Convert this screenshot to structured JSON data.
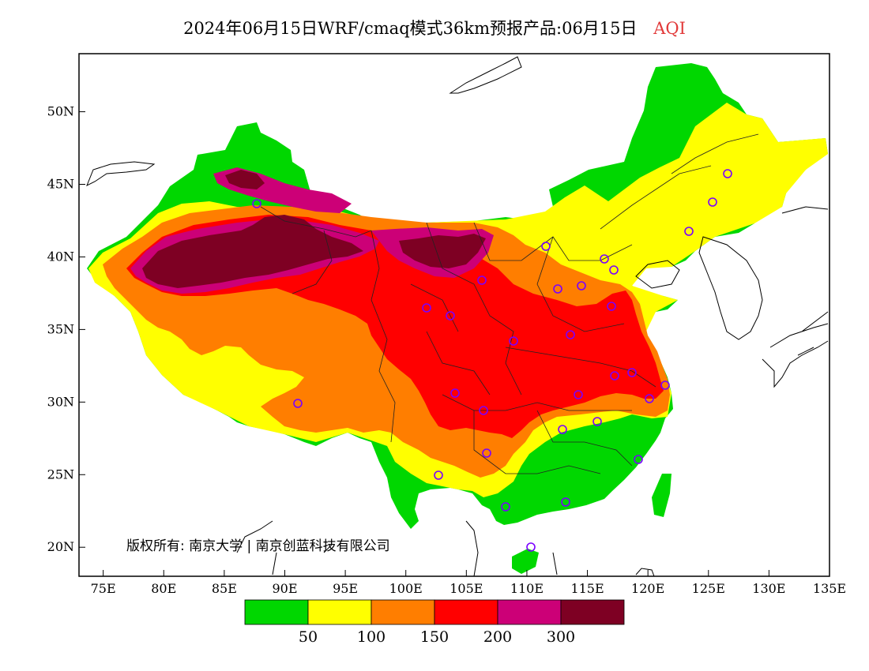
{
  "header": {
    "title": "2024年06月15日WRF/cmaq模式36km预报产品:06月15日",
    "variable": "AQI"
  },
  "map": {
    "lon_range": [
      73,
      135
    ],
    "lat_range": [
      18,
      54
    ],
    "lat_ticks": [
      "20N",
      "25N",
      "30N",
      "35N",
      "40N",
      "45N",
      "50N"
    ],
    "lon_ticks": [
      "75E",
      "80E",
      "85E",
      "90E",
      "95E",
      "100E",
      "105E",
      "110E",
      "115E",
      "120E",
      "125E",
      "130E",
      "135E"
    ],
    "copyright": "版权所有: 南京大学 | 南京创蓝科技有限公司"
  },
  "legend": {
    "colors": [
      "#00d700",
      "#ffff00",
      "#ff7e00",
      "#ff0000",
      "#cc0077",
      "#7e0023"
    ],
    "labels": [
      "50",
      "100",
      "150",
      "200",
      "300"
    ]
  }
}
